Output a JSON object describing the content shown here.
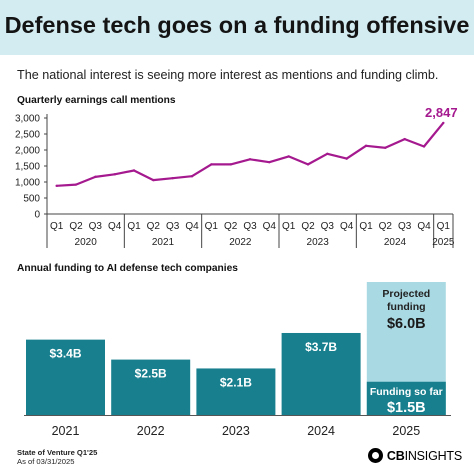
{
  "title": "Defense tech goes on a funding offensive",
  "subtitle": "The national interest is seeing more interest as mentions and funding climb.",
  "footer": {
    "source_line1": "State of Venture Q1'25",
    "source_line2": "As of 03/31/2025",
    "logo_bold": "CB",
    "logo_rest": "INSIGHTS",
    "logo_icon": "cb-insights-logo-icon"
  },
  "colors": {
    "line": "#a5198f",
    "bar": "#177f8e",
    "projected": "#a9d9e3",
    "title_band": "#d3ecf2"
  },
  "chart_data": [
    {
      "type": "line",
      "title": "Quarterly earnings call mentions",
      "x": [
        "Q1",
        "Q2",
        "Q3",
        "Q4",
        "Q1",
        "Q2",
        "Q3",
        "Q4",
        "Q1",
        "Q2",
        "Q3",
        "Q4",
        "Q1",
        "Q2",
        "Q3",
        "Q4",
        "Q1",
        "Q2",
        "Q3",
        "Q4",
        "Q1"
      ],
      "years": [
        {
          "label": "2020",
          "quarters": 4
        },
        {
          "label": "2021",
          "quarters": 4
        },
        {
          "label": "2022",
          "quarters": 4
        },
        {
          "label": "2023",
          "quarters": 4
        },
        {
          "label": "2024",
          "quarters": 4
        },
        {
          "label": "2025",
          "quarters": 1
        }
      ],
      "values": [
        880,
        920,
        1160,
        1240,
        1360,
        1060,
        1120,
        1180,
        1550,
        1550,
        1710,
        1620,
        1800,
        1550,
        1880,
        1730,
        2130,
        2070,
        2340,
        2110,
        2847
      ],
      "ylim": [
        0,
        3000
      ],
      "yticks": [
        0,
        500,
        1000,
        1500,
        2000,
        2500,
        3000
      ],
      "ytick_labels": [
        "0",
        "500",
        "1,000",
        "1,500",
        "2,000",
        "2,500",
        "3,000"
      ],
      "last_value_label": "2,847",
      "grid": false
    },
    {
      "type": "bar",
      "title": "Annual funding to AI defense tech companies",
      "categories": [
        "2021",
        "2022",
        "2023",
        "2024",
        "2025"
      ],
      "values": [
        3.4,
        2.5,
        2.1,
        3.7,
        1.5
      ],
      "labels": [
        "$3.4B",
        "$2.5B",
        "$2.1B",
        "$3.7B",
        "$1.5B"
      ],
      "projected": {
        "category": "2025",
        "total": 6.0,
        "header": "Projected funding",
        "header_line1": "Projected",
        "header_line2": "funding",
        "value_label": "$6.0B",
        "actual_header": "Funding so far",
        "actual_label": "$1.5B"
      },
      "ylim": [
        0,
        6.0
      ]
    }
  ]
}
